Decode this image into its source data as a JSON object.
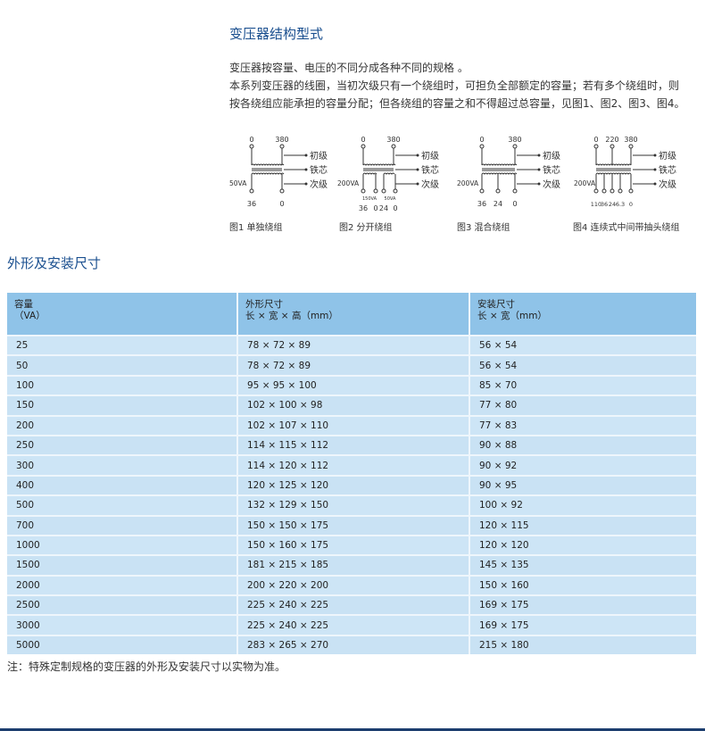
{
  "section1": {
    "title": "变压器结构型式",
    "lines": [
      "变压器按容量、电压的不同分成各种不同的规格 。",
      "本系列变压器的线圈，当初次级只有一个绕组时，可担负全部额定的容量；若有多个绕组时，则",
      "按各绕组应能承担的容量分配；但各绕组的容量之和不得超过总容量，见图1、图2、图3、图4。"
    ]
  },
  "diagrams": [
    {
      "caption": "图1 单独绕组",
      "va": "50VA",
      "top": [
        "0",
        "380"
      ],
      "bottom": [
        "36",
        "0"
      ],
      "sub": [],
      "legend": [
        "初级",
        "铁芯",
        "次级"
      ]
    },
    {
      "caption": "图2 分开绕组",
      "va": "200VA",
      "top": [
        "0",
        "380"
      ],
      "bottom": [
        "36",
        "0",
        "24",
        "0"
      ],
      "sub": [
        "150VA",
        "50VA"
      ],
      "legend": [
        "初级",
        "铁芯",
        "次级"
      ]
    },
    {
      "caption": "图3 混合绕组",
      "va": "200VA",
      "top": [
        "0",
        "380"
      ],
      "bottom": [
        "36",
        "24",
        "0"
      ],
      "sub": [],
      "legend": [
        "初级",
        "铁芯",
        "次级"
      ]
    },
    {
      "caption": "图4 连续式中间带抽头绕组",
      "va": "200VA",
      "top": [
        "0",
        "220",
        "380"
      ],
      "bottom": [
        "110",
        "36",
        "24",
        "6.3",
        "0"
      ],
      "sub": [],
      "legend": [
        "初级",
        "铁芯",
        "次级"
      ]
    }
  ],
  "section2": {
    "title": "外形及安装尺寸",
    "table": {
      "headers": [
        {
          "line1": "容量",
          "line2": "（VA）"
        },
        {
          "line1": "外形尺寸",
          "line2": "长 × 宽 × 高（mm）"
        },
        {
          "line1": "安装尺寸",
          "line2": "长 × 宽（mm）"
        }
      ],
      "rows": [
        [
          "25",
          "78 × 72 × 89",
          "56 × 54"
        ],
        [
          "50",
          "78 × 72 × 89",
          "56 × 54"
        ],
        [
          "100",
          "95 × 95 × 100",
          "85 × 70"
        ],
        [
          "150",
          "102 × 100 × 98",
          "77 × 80"
        ],
        [
          "200",
          "102 × 107 × 110",
          "77 × 83"
        ],
        [
          "250",
          "114 × 115 × 112",
          "90 × 88"
        ],
        [
          "300",
          "114 × 120 × 112",
          "90 × 92"
        ],
        [
          "400",
          "120 × 125 × 120",
          "90 × 95"
        ],
        [
          "500",
          "132 × 129 × 150",
          "100 × 92"
        ],
        [
          "700",
          "150 × 150 × 175",
          "120 × 115"
        ],
        [
          "1000",
          "150 × 160 × 175",
          "120 × 120"
        ],
        [
          "1500",
          "181 × 215 × 185",
          "145 × 135"
        ],
        [
          "2000",
          "200 × 220 × 200",
          "150 × 160"
        ],
        [
          "2500",
          "225 × 240 × 225",
          "169 × 175"
        ],
        [
          "3000",
          "225 × 240 × 225",
          "169 × 175"
        ],
        [
          "5000",
          "283 × 265 × 270",
          "215 × 180"
        ]
      ]
    },
    "note": "注：特殊定制规格的变压器的外形及安装尺寸以实物为准。"
  },
  "colors": {
    "title": "#1a4f8f",
    "header_bg": "#8fc3e8",
    "row_bg": "#c9e2f4",
    "bottom_bar": "#1c3d6e"
  }
}
